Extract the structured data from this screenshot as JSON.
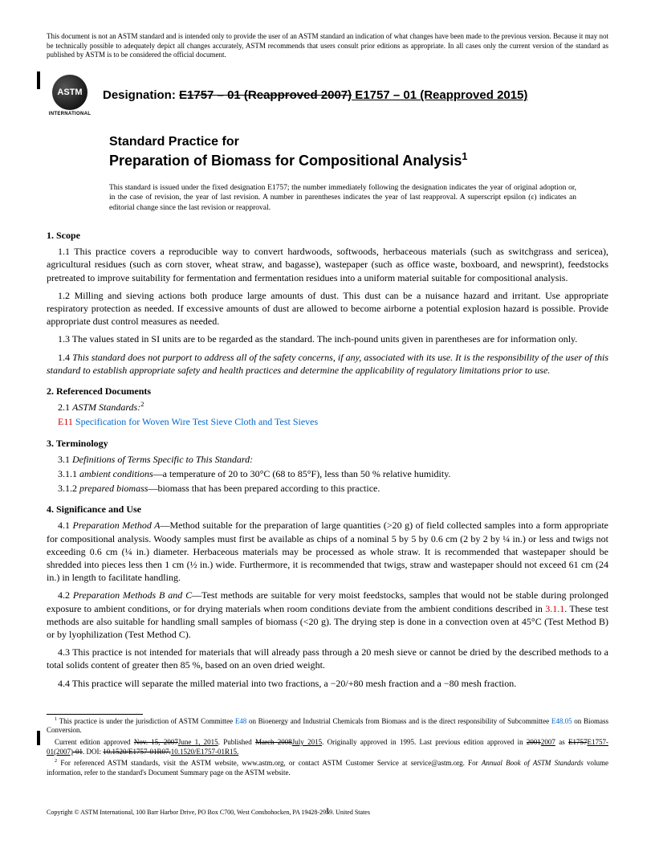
{
  "disclaimer": "This document is not an ASTM standard and is intended only to provide the user of an ASTM standard an indication of what changes have been made to the previous version. Because it may not be technically possible to adequately depict all changes accurately, ASTM recommends that users consult prior editions as appropriate. In all cases only the current version of the standard as published by ASTM is to be considered the official document.",
  "logo_text": "ASTM",
  "logo_subtext": "INTERNATIONAL",
  "designation_label": "Designation: ",
  "designation_old": "E1757 – 01 (Reapproved 2007)",
  "designation_new": " E1757 – 01 (Reapproved 2015)",
  "title_line1": "Standard Practice for",
  "title_line2": "Preparation of Biomass for Compositional Analysis",
  "title_sup": "1",
  "issued_note": "This standard is issued under the fixed designation E1757; the number immediately following the designation indicates the year of original adoption or, in the case of revision, the year of last revision. A number in parentheses indicates the year of last reapproval. A superscript epsilon (ε) indicates an editorial change since the last revision or reapproval.",
  "s1_head": "1. Scope",
  "s1_1": "1.1 This practice covers a reproducible way to convert hardwoods, softwoods, herbaceous materials (such as switchgrass and sericea), agricultural residues (such as corn stover, wheat straw, and bagasse), wastepaper (such as office waste, boxboard, and newsprint), feedstocks pretreated to improve suitability for fermentation and fermentation residues into a uniform material suitable for compositional analysis.",
  "s1_2": "1.2 Milling and sieving actions both produce large amounts of dust. This dust can be a nuisance hazard and irritant. Use appropriate respiratory protection as needed. If excessive amounts of dust are allowed to become airborne a potential explosion hazard is possible. Provide appropriate dust control measures as needed.",
  "s1_3": "1.3 The values stated in SI units are to be regarded as the standard. The inch-pound units given in parentheses are for information only.",
  "s1_4": "1.4 This standard does not purport to address all of the safety concerns, if any, associated with its use. It is the responsibility of the user of this standard to establish appropriate safety and health practices and determine the applicability of regulatory limitations prior to use.",
  "s2_head": "2. Referenced Documents",
  "s2_1_label": "2.1 ",
  "s2_1_text": "ASTM Standards:",
  "s2_1_sup": "2",
  "s2_ref_code": "E11",
  "s2_ref_text": " Specification for Woven Wire Test Sieve Cloth and Test Sieves",
  "s3_head": "3. Terminology",
  "s3_1": "3.1 Definitions of Terms Specific to This Standard:",
  "s3_1_1_term": "ambient conditions",
  "s3_1_1_def": "—a temperature of 20 to 30°C (68 to 85°F), less than 50 % relative humidity.",
  "s3_1_2_term": "prepared biomass",
  "s3_1_2_def": "—biomass that has been prepared according to this practice.",
  "s4_head": "4. Significance and Use",
  "s4_1_label": "4.1 ",
  "s4_1_term": "Preparation Method A",
  "s4_1_text": "—Method suitable for the preparation of large quantities (>20 g) of field collected samples into a form appropriate for compositional analysis. Woody samples must first be available as chips of a nominal 5 by 5 by 0.6 cm (2 by 2 by ¼ in.) or less and twigs not exceeding 0.6 cm (¼ in.) diameter. Herbaceous materials may be processed as whole straw. It is recommended that wastepaper should be shredded into pieces less then 1 cm (½ in.) wide. Furthermore, it is recommended that twigs, straw and wastepaper should not exceed 61 cm (24 in.) in length to facilitate handling.",
  "s4_2_label": "4.2 ",
  "s4_2_term": "Preparation Methods B and C",
  "s4_2_text1": "—Test methods are suitable for very moist feedstocks, samples that would not be stable during prolonged exposure to ambient conditions, or for drying materials when room conditions deviate from the ambient conditions described in ",
  "s4_2_ref": "3.1.1",
  "s4_2_text2": ". These test methods are also suitable for handling small samples of biomass (<20 g). The drying step is done in a convection oven at 45°C (Test Method B) or by lyophilization (Test Method C).",
  "s4_3": "4.3 This practice is not intended for materials that will already pass through a 20 mesh sieve or cannot be dried by the described methods to a total solids content of greater then 85 %, based on an oven dried weight.",
  "s4_4": "4.4 This practice will separate the milled material into two fractions, a −20/+80 mesh fraction and a −80 mesh fraction.",
  "fn1_a": " This practice is under the jurisdiction of ASTM Committee ",
  "fn1_link1": "E48",
  "fn1_b": " on Bioenergy and Industrial Chemicals from Biomass and is the direct responsibility of Subcommittee ",
  "fn1_link2": "E48.05",
  "fn1_c": " on Biomass Conversion.",
  "fn1_2a": "Current edition approved ",
  "fn1_2_old1": "Nov. 15, 2007",
  "fn1_2_new1": "June 1, 2015",
  "fn1_2b": ". Published ",
  "fn1_2_old2": "March 2008",
  "fn1_2_new2": "July 2015",
  "fn1_2c": ". Originally approved in 1995. Last previous edition approved in ",
  "fn1_2_old3": "2001",
  "fn1_2_new3": "2007",
  "fn1_2d": " as ",
  "fn1_2_old4": "E1757",
  "fn1_2_new4": "E1757-01(2007)",
  "fn1_2_old5": "-01",
  "fn1_2e": ". DOI: ",
  "fn1_2_old6": "10.1520/E1757-01R07.",
  "fn1_2_new6": "10.1520/E1757-01R15.",
  "fn2_a": " For referenced ASTM standards, visit the ASTM website, www.astm.org, or contact ASTM Customer Service at service@astm.org. For ",
  "fn2_b": "Annual Book of ASTM Standards",
  "fn2_c": " volume information, refer to the standard's Document Summary page on the ASTM website.",
  "copyright": "Copyright © ASTM International, 100 Barr Harbor Drive, PO Box C700, West Conshohocken, PA 19428-2959. United States",
  "pagenum": "1"
}
